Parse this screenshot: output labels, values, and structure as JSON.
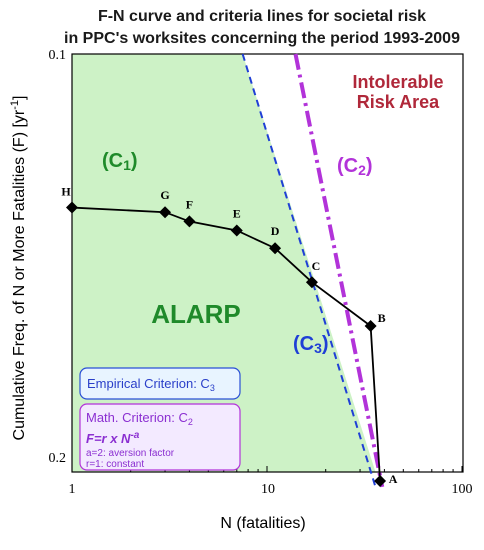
{
  "chart_data": {
    "type": "line",
    "title_lines": [
      "F-N curve and criteria lines for societal risk",
      "in PPC's worksites concerning the period 1993-2009"
    ],
    "xlabel": "N  (fatalities)",
    "ylabel": "Cumulative Freq. of N or More Fatalities (F) [yr",
    "ylabel_sup": "-1",
    "ylabel_end": "]",
    "xscale": "log",
    "yscale": "log",
    "xlim": [
      1,
      100
    ],
    "ylim": [
      0.2,
      0.1
    ],
    "x_ticks": [
      "1",
      "10",
      "100"
    ],
    "y_ticks": [
      "0.1",
      "0.2"
    ],
    "series": [
      {
        "points": [
          {
            "label": "H",
            "x": 1.0,
            "y": 0.129
          },
          {
            "label": "G",
            "x": 3.0,
            "y": 0.13
          },
          {
            "label": "F",
            "x": 4.0,
            "y": 0.132
          },
          {
            "label": "E",
            "x": 7.0,
            "y": 0.134
          },
          {
            "label": "D",
            "x": 11.0,
            "y": 0.138
          },
          {
            "label": "C",
            "x": 17.0,
            "y": 0.146
          },
          {
            "label": "B",
            "x": 34.0,
            "y": 0.157
          },
          {
            "label": "A",
            "x": 38.0,
            "y": 0.203
          }
        ]
      }
    ],
    "criteria_lines": [
      {
        "label_main": "(C",
        "label_sub": "3",
        "label_end": ")",
        "color": "#1f3fd6",
        "style": "dashed",
        "from": [
          7.5,
          0.1
        ],
        "to": [
          36.0,
          0.205
        ]
      },
      {
        "label_main": "(C",
        "label_sub": "2",
        "label_end": ")",
        "color": "#b233d9",
        "style": "dashdot",
        "from": [
          14.0,
          0.1
        ],
        "to": [
          39.0,
          0.205
        ]
      }
    ],
    "regions": {
      "alarp": "ALARP",
      "intolerable_line1": "Intolerable",
      "intolerable_line2": "Risk Area",
      "c1_main": "(C",
      "c1_sub": "1",
      "c1_end": ")"
    },
    "legend_boxes": {
      "empirical_text": "Empirical Criterion: C",
      "empirical_sub": "3",
      "math_text": "Math. Criterion: C",
      "math_sub": "2",
      "formula_a": "F=r x N",
      "formula_exp": "-a",
      "note1": "a=2: aversion factor",
      "note2": "r=1: constant"
    },
    "colors": {
      "alarp_fill": "#cdf2c6",
      "curve": "#000000",
      "c3": "#1f3fd6",
      "c2": "#b233d9",
      "alarp_text": "#1f8a2a",
      "intolerable_text": "#b0283a",
      "c1_text": "#1f8a2a"
    }
  }
}
